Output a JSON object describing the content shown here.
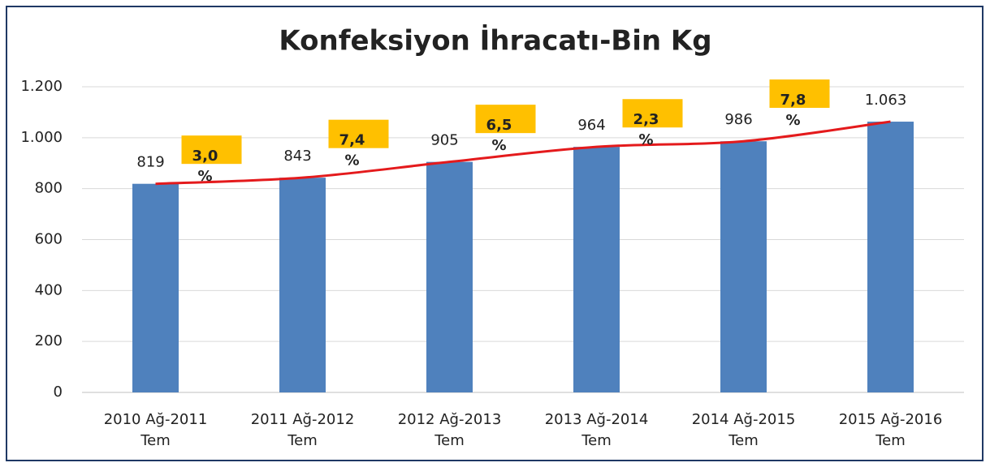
{
  "chart_data": {
    "type": "bar",
    "title": "Konfeksiyon İhracatı-Bin Kg",
    "categories": [
      "2010 Ağ-2011 Tem",
      "2011 Ağ-2012 Tem",
      "2012 Ağ-2013 Tem",
      "2013 Ağ-2014 Tem",
      "2014 Ağ-2015 Tem",
      "2015 Ağ-2016 Tem"
    ],
    "values": [
      819,
      843,
      905,
      964,
      986,
      1063
    ],
    "value_labels": [
      "819",
      "843",
      "905",
      "964",
      "986",
      "1.063"
    ],
    "color": "#4f81bd",
    "trend_color": "#e41a1c",
    "annotations": [
      "3,0 %",
      "7,4 %",
      "6,5 %",
      "2,3 %",
      "7,8 %"
    ],
    "annotation_color": "#ffc000",
    "ylim": [
      0,
      1200
    ],
    "yticks": [
      0,
      200,
      400,
      600,
      800,
      {
        "value": 1000,
        "label": "1.000"
      },
      {
        "value": 1200,
        "label": "1.200"
      }
    ],
    "grid": true
  }
}
